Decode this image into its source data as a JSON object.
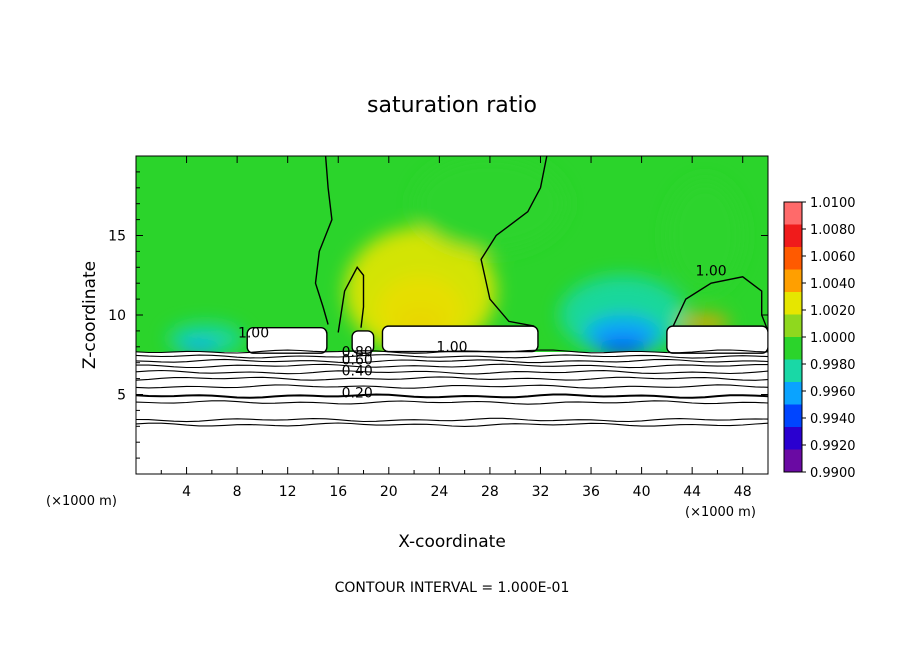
{
  "chart_data": {
    "type": "heatmap",
    "title": "saturation ratio",
    "xlabel": "X-coordinate",
    "ylabel": "Z-coordinate",
    "x_unit_label": "(×1000 m)",
    "z_unit_label": "(×1000 m)",
    "xlim": [
      0,
      50
    ],
    "ylim": [
      0,
      20
    ],
    "x_ticks": [
      "4",
      "8",
      "12",
      "16",
      "20",
      "24",
      "28",
      "32",
      "36",
      "40",
      "44",
      "48"
    ],
    "y_ticks": [
      "5",
      "10",
      "15"
    ],
    "footer": "CONTOUR INTERVAL = 1.000E-01",
    "colorbar": {
      "levels": [
        "1.0100",
        "1.0080",
        "1.0060",
        "1.0040",
        "1.0020",
        "1.0000",
        "0.9980",
        "0.9960",
        "0.9940",
        "0.9920",
        "0.9900"
      ],
      "colors": [
        "#ff6a6a",
        "#f01b1b",
        "#ff5a00",
        "#ff9f00",
        "#e6e600",
        "#8fd81e",
        "#2bd42b",
        "#19d8a6",
        "#0aa3ff",
        "#0045ff",
        "#2a00d0",
        "#6a0aa3"
      ]
    },
    "contour_labels": [
      {
        "text": "1.00",
        "x": 9.3,
        "z": 8.6
      },
      {
        "text": "1.00",
        "x": 45.5,
        "z": 12.5
      },
      {
        "text": "1.00",
        "x": 25.0,
        "z": 7.7
      },
      {
        "text": "0.80",
        "x": 17.5,
        "z": 7.4
      },
      {
        "text": "0.60",
        "x": 17.5,
        "z": 6.9
      },
      {
        "text": "0.40",
        "x": 17.5,
        "z": 6.2
      },
      {
        "text": "0.20",
        "x": 17.5,
        "z": 4.8
      }
    ],
    "contour_levels_z": [
      3.1,
      3.4,
      4.5,
      4.9,
      5.5,
      6.0,
      6.4,
      6.8,
      7.1,
      7.4,
      7.7
    ],
    "blobs": [
      {
        "level": 1.004,
        "x": 22.5,
        "z": 10.3,
        "rx": 3.5,
        "rz": 2.2
      },
      {
        "level": 1.006,
        "x": 22.5,
        "z": 9.6,
        "rx": 2.0,
        "rz": 1.0
      },
      {
        "level": 1.002,
        "x": 22.5,
        "z": 11.5,
        "rx": 6.0,
        "rz": 4.0
      },
      {
        "level": 0.996,
        "x": 38.5,
        "z": 10.0,
        "rx": 5.0,
        "rz": 2.5
      },
      {
        "level": 0.994,
        "x": 38.5,
        "z": 8.8,
        "rx": 3.0,
        "rz": 1.2
      },
      {
        "level": 0.992,
        "x": 38.5,
        "z": 8.0,
        "rx": 2.0,
        "rz": 0.5
      },
      {
        "level": 0.996,
        "x": 5.5,
        "z": 8.5,
        "rx": 3.0,
        "rz": 1.0
      },
      {
        "level": 0.994,
        "x": 5.0,
        "z": 8.0,
        "rx": 1.5,
        "rz": 0.4
      },
      {
        "level": 0.998,
        "x": 45.0,
        "z": 15.0,
        "rx": 3.0,
        "rz": 3.5
      },
      {
        "level": 0.998,
        "x": 28.0,
        "z": 17.0,
        "rx": 6.0,
        "rz": 3.0
      },
      {
        "level": 1.004,
        "x": 45.0,
        "z": 9.5,
        "rx": 2.0,
        "rz": 0.5
      }
    ],
    "cloud_blocks": [
      {
        "x0": 8.8,
        "x1": 15.1,
        "z0": 7.6,
        "z1": 9.2
      },
      {
        "x0": 19.5,
        "x1": 31.8,
        "z0": 7.7,
        "z1": 9.3
      },
      {
        "x0": 42.0,
        "x1": 50.0,
        "z0": 7.6,
        "z1": 9.3
      },
      {
        "x0": 17.1,
        "x1": 18.8,
        "z0": 7.6,
        "z1": 9.0
      }
    ]
  }
}
